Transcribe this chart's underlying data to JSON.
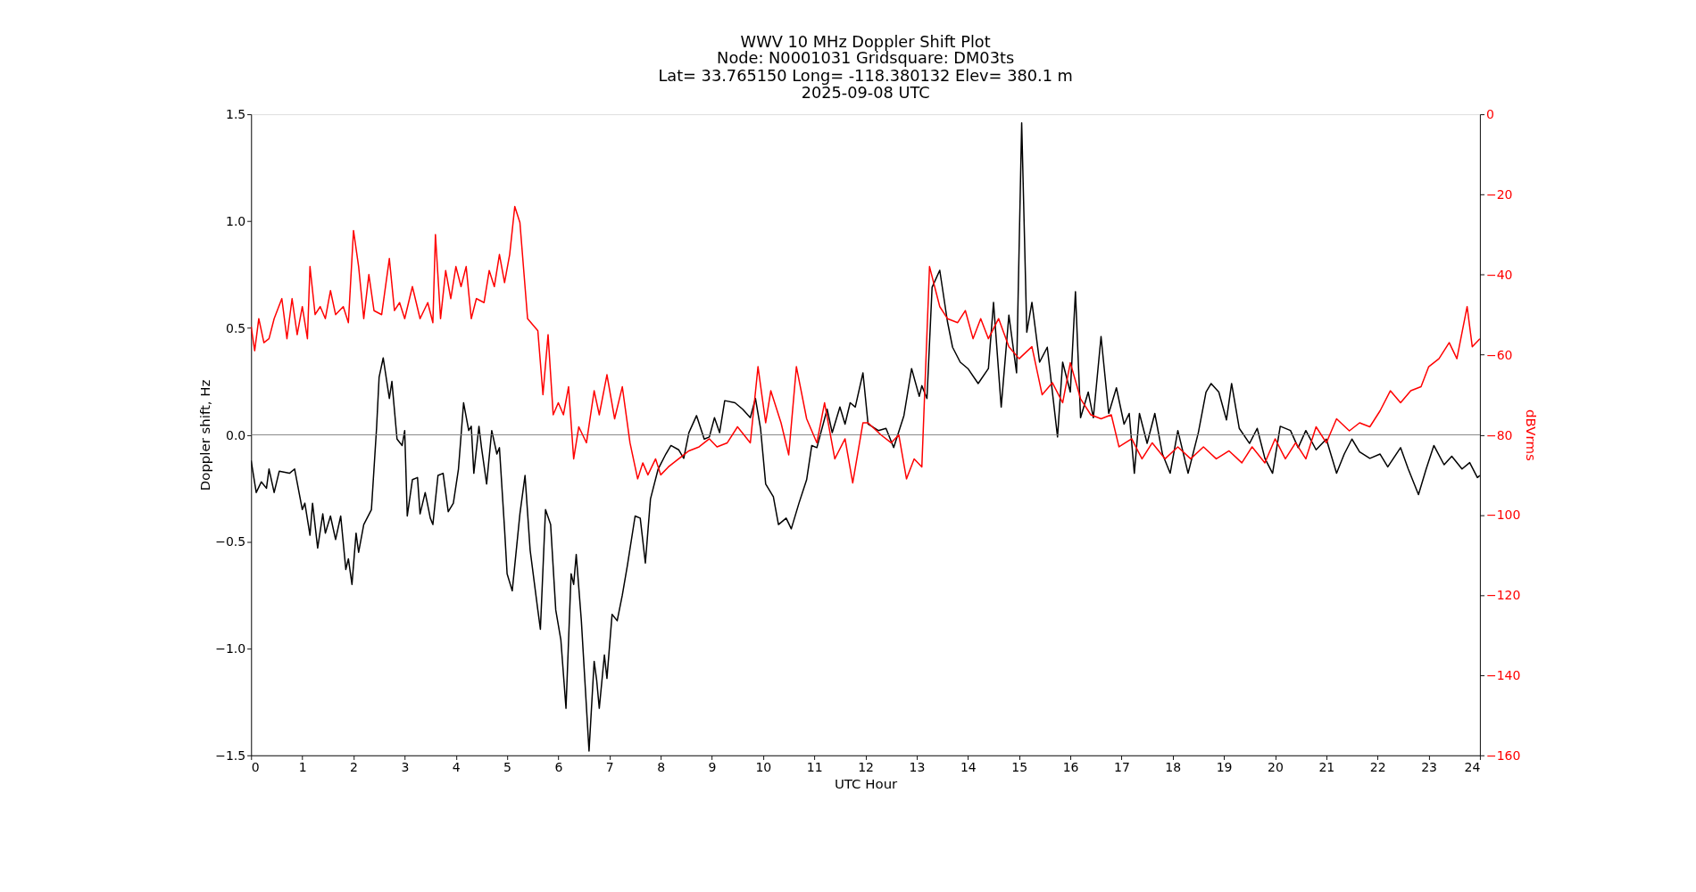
{
  "chart_data": {
    "type": "line",
    "title": "WWV 10 MHz Doppler Shift Plot",
    "subtitle": "Node:  N0001031     Gridsquare:  DM03ts\nLat= 33.765150    Long= -118.380132    Elev= 380.1 m\n2025-09-08  UTC",
    "xlabel": "UTC Hour",
    "ylabel": "Doppler shift, Hz",
    "y2label": "dBVrms",
    "xlim": [
      0,
      24
    ],
    "xticks": [
      0,
      1,
      2,
      3,
      4,
      5,
      6,
      7,
      8,
      9,
      10,
      11,
      12,
      13,
      14,
      15,
      16,
      17,
      18,
      19,
      20,
      21,
      22,
      23,
      24
    ],
    "ylim": [
      -1.5,
      1.5
    ],
    "yticks": [
      {
        "value": -1.5,
        "label": "−1.5"
      },
      {
        "value": -1.0,
        "label": "−1.0"
      },
      {
        "value": -0.5,
        "label": "−0.5"
      },
      {
        "value": 0,
        "label": "0.0"
      },
      {
        "value": 0.5,
        "label": "0.5"
      },
      {
        "value": 1.0,
        "label": "1.0"
      },
      {
        "value": 1.5,
        "label": "1.5"
      }
    ],
    "y2lim": [
      -160,
      0
    ],
    "y2ticks": [
      {
        "value": -160,
        "label": "−160"
      },
      {
        "value": -140,
        "label": "−140"
      },
      {
        "value": -120,
        "label": "−120"
      },
      {
        "value": -100,
        "label": "−100"
      },
      {
        "value": -80,
        "label": "−80"
      },
      {
        "value": -60,
        "label": "−60"
      },
      {
        "value": -40,
        "label": "−40"
      },
      {
        "value": -20,
        "label": "−20"
      },
      {
        "value": 0,
        "label": "0"
      }
    ],
    "grid": false,
    "line_style": "solid",
    "marker": "none",
    "ref_lines": [
      {
        "axis": "y",
        "value": 0,
        "color": "#808080"
      }
    ],
    "series": [
      {
        "color": "#000000",
        "x": [
          0,
          0.1,
          0.2,
          0.3,
          0.35,
          0.45,
          0.55,
          0.75,
          0.85,
          1.0,
          1.05,
          1.15,
          1.2,
          1.3,
          1.4,
          1.45,
          1.55,
          1.65,
          1.75,
          1.85,
          1.9,
          1.97,
          2.05,
          2.1,
          2.2,
          2.35,
          2.45,
          2.5,
          2.58,
          2.7,
          2.75,
          2.85,
          2.95,
          3.0,
          3.05,
          3.15,
          3.25,
          3.3,
          3.4,
          3.5,
          3.55,
          3.65,
          3.75,
          3.85,
          3.95,
          4.05,
          4.15,
          4.25,
          4.3,
          4.35,
          4.45,
          4.5,
          4.6,
          4.7,
          4.8,
          4.85,
          4.95,
          5.0,
          5.1,
          5.25,
          5.35,
          5.45,
          5.6,
          5.65,
          5.75,
          5.85,
          5.95,
          6.05,
          6.15,
          6.25,
          6.3,
          6.35,
          6.45,
          6.6,
          6.7,
          6.75,
          6.8,
          6.9,
          6.95,
          7.05,
          7.15,
          7.25,
          7.35,
          7.5,
          7.6,
          7.7,
          7.8,
          7.95,
          8.1,
          8.2,
          8.35,
          8.45,
          8.55,
          8.7,
          8.85,
          8.95,
          9.05,
          9.15,
          9.25,
          9.45,
          9.6,
          9.75,
          9.85,
          9.95,
          10.05,
          10.2,
          10.3,
          10.45,
          10.55,
          10.7,
          10.85,
          10.95,
          11.05,
          11.25,
          11.35,
          11.5,
          11.6,
          11.7,
          11.8,
          11.95,
          12.05,
          12.25,
          12.4,
          12.55,
          12.75,
          12.9,
          13.05,
          13.1,
          13.2,
          13.3,
          13.45,
          13.6,
          13.7,
          13.85,
          14.0,
          14.2,
          14.4,
          14.5,
          14.65,
          14.8,
          14.95,
          15.05,
          15.15,
          15.25,
          15.4,
          15.55,
          15.75,
          15.85,
          16.0,
          16.1,
          16.2,
          16.35,
          16.45,
          16.6,
          16.75,
          16.9,
          17.05,
          17.15,
          17.25,
          17.35,
          17.5,
          17.65,
          17.8,
          17.95,
          18.1,
          18.3,
          18.5,
          18.65,
          18.75,
          18.9,
          19.05,
          19.15,
          19.3,
          19.5,
          19.65,
          19.8,
          19.95,
          20.1,
          20.3,
          20.45,
          20.6,
          20.8,
          21.0,
          21.2,
          21.35,
          21.5,
          21.65,
          21.85,
          22.05,
          22.2,
          22.45,
          22.6,
          22.8,
          22.95,
          23.1,
          23.3,
          23.45,
          23.65,
          23.8,
          23.95,
          24.0
        ],
        "values": [
          -0.12,
          -0.27,
          -0.22,
          -0.25,
          -0.16,
          -0.27,
          -0.17,
          -0.18,
          -0.16,
          -0.35,
          -0.32,
          -0.47,
          -0.32,
          -0.53,
          -0.37,
          -0.46,
          -0.38,
          -0.49,
          -0.38,
          -0.63,
          -0.58,
          -0.7,
          -0.46,
          -0.55,
          -0.42,
          -0.35,
          0.03,
          0.27,
          0.36,
          0.17,
          0.25,
          -0.02,
          -0.05,
          0.02,
          -0.38,
          -0.21,
          -0.2,
          -0.37,
          -0.27,
          -0.39,
          -0.42,
          -0.19,
          -0.18,
          -0.36,
          -0.32,
          -0.16,
          0.15,
          0.02,
          0.04,
          -0.18,
          0.04,
          -0.06,
          -0.23,
          0.02,
          -0.09,
          -0.06,
          -0.44,
          -0.65,
          -0.73,
          -0.37,
          -0.19,
          -0.54,
          -0.82,
          -0.91,
          -0.35,
          -0.42,
          -0.82,
          -0.96,
          -1.28,
          -0.65,
          -0.7,
          -0.56,
          -0.87,
          -1.48,
          -1.06,
          -1.15,
          -1.28,
          -1.03,
          -1.14,
          -0.84,
          -0.87,
          -0.75,
          -0.61,
          -0.38,
          -0.39,
          -0.6,
          -0.3,
          -0.16,
          -0.09,
          -0.05,
          -0.07,
          -0.11,
          0.01,
          0.09,
          -0.02,
          -0.01,
          0.08,
          0.01,
          0.16,
          0.15,
          0.12,
          0.08,
          0.17,
          0.03,
          -0.23,
          -0.29,
          -0.42,
          -0.39,
          -0.44,
          -0.32,
          -0.21,
          -0.05,
          -0.06,
          0.12,
          0.01,
          0.13,
          0.05,
          0.15,
          0.13,
          0.29,
          0.05,
          0.02,
          0.03,
          -0.06,
          0.09,
          0.31,
          0.18,
          0.23,
          0.17,
          0.69,
          0.77,
          0.53,
          0.41,
          0.34,
          0.31,
          0.24,
          0.31,
          0.62,
          0.13,
          0.56,
          0.29,
          1.46,
          0.48,
          0.62,
          0.34,
          0.41,
          -0.01,
          0.34,
          0.2,
          0.67,
          0.08,
          0.2,
          0.08,
          0.46,
          0.1,
          0.22,
          0.05,
          0.1,
          -0.18,
          0.1,
          -0.04,
          0.1,
          -0.09,
          -0.18,
          0.02,
          -0.18,
          0.01,
          0.2,
          0.24,
          0.2,
          0.07,
          0.24,
          0.03,
          -0.04,
          0.03,
          -0.11,
          -0.18,
          0.04,
          0.02,
          -0.06,
          0.02,
          -0.07,
          -0.02,
          -0.18,
          -0.09,
          -0.02,
          -0.08,
          -0.11,
          -0.09,
          -0.15,
          -0.06,
          -0.16,
          -0.28,
          -0.16,
          -0.05,
          -0.14,
          -0.1,
          -0.16,
          -0.13,
          -0.2,
          -0.19
        ]
      },
      {
        "color": "#ff0000",
        "axis": "y2",
        "x": [
          0,
          0.07,
          0.15,
          0.25,
          0.35,
          0.45,
          0.6,
          0.7,
          0.8,
          0.9,
          1.0,
          1.1,
          1.15,
          1.25,
          1.35,
          1.45,
          1.55,
          1.65,
          1.8,
          1.9,
          2.0,
          2.1,
          2.2,
          2.3,
          2.4,
          2.55,
          2.7,
          2.8,
          2.9,
          3.0,
          3.15,
          3.3,
          3.45,
          3.55,
          3.6,
          3.7,
          3.8,
          3.9,
          4.0,
          4.1,
          4.2,
          4.3,
          4.4,
          4.55,
          4.65,
          4.75,
          4.85,
          4.95,
          5.05,
          5.15,
          5.25,
          5.4,
          5.6,
          5.7,
          5.8,
          5.9,
          6.0,
          6.1,
          6.2,
          6.3,
          6.4,
          6.55,
          6.7,
          6.8,
          6.95,
          7.1,
          7.25,
          7.4,
          7.55,
          7.65,
          7.75,
          7.9,
          8.0,
          8.15,
          8.35,
          8.55,
          8.75,
          8.95,
          9.1,
          9.3,
          9.5,
          9.75,
          9.9,
          10.05,
          10.15,
          10.35,
          10.5,
          10.65,
          10.85,
          11.05,
          11.2,
          11.4,
          11.6,
          11.75,
          11.95,
          12.05,
          12.3,
          12.5,
          12.65,
          12.8,
          12.95,
          13.1,
          13.25,
          13.45,
          13.6,
          13.8,
          13.95,
          14.1,
          14.25,
          14.4,
          14.6,
          14.8,
          15.0,
          15.25,
          15.45,
          15.65,
          15.85,
          16.0,
          16.2,
          16.4,
          16.6,
          16.8,
          16.95,
          17.2,
          17.4,
          17.6,
          17.85,
          18.1,
          18.35,
          18.6,
          18.85,
          19.1,
          19.35,
          19.55,
          19.8,
          20.0,
          20.2,
          20.4,
          20.6,
          20.8,
          21.0,
          21.2,
          21.45,
          21.65,
          21.85,
          22.05,
          22.25,
          22.45,
          22.65,
          22.85,
          23.0,
          23.2,
          23.4,
          23.55,
          23.75,
          23.85,
          24.0
        ],
        "values": [
          -53,
          -59,
          -51,
          -57,
          -56,
          -51,
          -46,
          -56,
          -46,
          -55,
          -48,
          -56,
          -38,
          -50,
          -48,
          -51,
          -44,
          -50,
          -48,
          -52,
          -29,
          -38,
          -51,
          -40,
          -49,
          -50,
          -36,
          -49,
          -47,
          -51,
          -43,
          -51,
          -47,
          -52,
          -30,
          -51,
          -39,
          -46,
          -38,
          -43,
          -38,
          -51,
          -46,
          -47,
          -39,
          -43,
          -35,
          -42,
          -35,
          -23,
          -27,
          -51,
          -54,
          -70,
          -55,
          -75,
          -72,
          -75,
          -68,
          -86,
          -78,
          -82,
          -69,
          -75,
          -65,
          -76,
          -68,
          -82,
          -91,
          -87,
          -90,
          -86,
          -90,
          -88,
          -86,
          -84,
          -83,
          -81,
          -83,
          -82,
          -78,
          -82,
          -63,
          -77,
          -69,
          -77,
          -85,
          -63,
          -76,
          -82,
          -72,
          -86,
          -81,
          -92,
          -77,
          -77,
          -80,
          -82,
          -80,
          -91,
          -86,
          -88,
          -38,
          -48,
          -51,
          -52,
          -49,
          -56,
          -51,
          -56,
          -51,
          -58,
          -61,
          -58,
          -70,
          -67,
          -72,
          -62,
          -71,
          -75,
          -76,
          -75,
          -83,
          -81,
          -86,
          -82,
          -86,
          -83,
          -86,
          -83,
          -86,
          -84,
          -87,
          -83,
          -87,
          -81,
          -86,
          -82,
          -86,
          -78,
          -82,
          -76,
          -79,
          -77,
          -78,
          -74,
          -69,
          -72,
          -69,
          -68,
          -63,
          -61,
          -57,
          -61,
          -48,
          -58,
          -56
        ]
      }
    ]
  }
}
